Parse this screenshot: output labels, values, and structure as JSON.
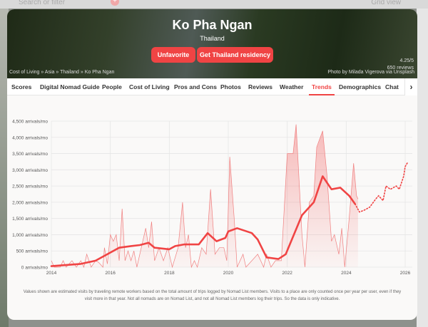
{
  "topbar": {
    "search_placeholder": "Search or filter",
    "grid_view": "Grid view"
  },
  "hero": {
    "title": "Ko Pha Ngan",
    "country": "Thailand",
    "unfavorite": "Unfavorite",
    "residency": "Get Thailand residency",
    "breadcrumb": "Cost of Living » Asia » Thailand » Ko Pha Ngan",
    "rating": "4.25/5",
    "reviews": "650 reviews",
    "credit": "Photo by Milada Vigerova via Unsplash"
  },
  "tabs": [
    "Scores",
    "Digital Nomad Guide",
    "People",
    "Cost of Living",
    "Pros and Cons",
    "Photos",
    "Reviews",
    "Weather",
    "Trends",
    "Demographics",
    "Chat"
  ],
  "active_tab": "Trends",
  "note": "Values shown are estimated visits by traveling remote workers based on the total amount of trips logged by Nomad List members. Visits to a place are only counted once per year per user, even if they visit more in that year. Not all nomads are on Nomad List, and not all Nomad List members log their trips. So the data is only indicative.",
  "chart_data": {
    "type": "line",
    "ylim": [
      0,
      4500
    ],
    "xlim": [
      2014,
      2026
    ],
    "y_ticks": [
      "0 arrivals/mo",
      "500 arrivals/mo",
      "1,000 arrivals/mo",
      "1,500 arrivals/mo",
      "2,000 arrivals/mo",
      "2,500 arrivals/mo",
      "3,000 arrivals/mo",
      "3,500 arrivals/mo",
      "4,000 arrivals/mo",
      "4,500 arrivals/mo"
    ],
    "x_ticks": [
      "2014",
      "2016",
      "2018",
      "2020",
      "2022",
      "2024",
      "2026"
    ],
    "grid": true,
    "color": "#f04444",
    "monthly": [
      [
        2014,
        200
      ],
      [
        2014.1,
        0
      ],
      [
        2014.3,
        0
      ],
      [
        2014.4,
        200
      ],
      [
        2014.5,
        0
      ],
      [
        2014.7,
        200
      ],
      [
        2014.85,
        0
      ],
      [
        2015,
        200
      ],
      [
        2015.1,
        0
      ],
      [
        2015.2,
        400
      ],
      [
        2015.35,
        0
      ],
      [
        2015.5,
        200
      ],
      [
        2015.6,
        150
      ],
      [
        2015.75,
        0
      ],
      [
        2015.8,
        600
      ],
      [
        2015.9,
        100
      ],
      [
        2016,
        1000
      ],
      [
        2016.1,
        800
      ],
      [
        2016.2,
        1000
      ],
      [
        2016.3,
        200
      ],
      [
        2016.4,
        1800
      ],
      [
        2016.5,
        200
      ],
      [
        2016.6,
        500
      ],
      [
        2016.7,
        200
      ],
      [
        2016.8,
        500
      ],
      [
        2016.9,
        0
      ],
      [
        2017.1,
        800
      ],
      [
        2017.2,
        1200
      ],
      [
        2017.3,
        600
      ],
      [
        2017.4,
        1400
      ],
      [
        2017.5,
        200
      ],
      [
        2017.65,
        600
      ],
      [
        2017.8,
        200
      ],
      [
        2017.95,
        600
      ],
      [
        2018.1,
        0
      ],
      [
        2018.3,
        600
      ],
      [
        2018.45,
        2000
      ],
      [
        2018.55,
        600
      ],
      [
        2018.65,
        1000
      ],
      [
        2018.75,
        0
      ],
      [
        2018.85,
        200
      ],
      [
        2018.95,
        0
      ],
      [
        2019.1,
        600
      ],
      [
        2019.25,
        400
      ],
      [
        2019.4,
        2400
      ],
      [
        2019.55,
        400
      ],
      [
        2019.7,
        600
      ],
      [
        2019.85,
        600
      ],
      [
        2019.95,
        200
      ],
      [
        2020.05,
        3400
      ],
      [
        2020.2,
        1500
      ],
      [
        2020.3,
        0
      ],
      [
        2020.5,
        400
      ],
      [
        2020.6,
        0
      ],
      [
        2020.8,
        200
      ],
      [
        2021,
        400
      ],
      [
        2021.2,
        0
      ],
      [
        2021.3,
        400
      ],
      [
        2021.45,
        0
      ],
      [
        2021.6,
        200
      ],
      [
        2021.8,
        200
      ],
      [
        2022,
        3500
      ],
      [
        2022.2,
        3500
      ],
      [
        2022.3,
        4400
      ],
      [
        2022.5,
        1000
      ],
      [
        2022.6,
        0
      ],
      [
        2022.75,
        2000
      ],
      [
        2022.9,
        2200
      ],
      [
        2023,
        3700
      ],
      [
        2023.2,
        4200
      ],
      [
        2023.35,
        2800
      ],
      [
        2023.5,
        800
      ],
      [
        2023.6,
        1000
      ],
      [
        2023.75,
        400
      ],
      [
        2023.85,
        1200
      ],
      [
        2023.95,
        0
      ],
      [
        2024.1,
        1500
      ],
      [
        2024.25,
        3200
      ],
      [
        2024.35,
        2200
      ],
      [
        2024.4,
        2100
      ]
    ],
    "trend": [
      [
        2014,
        30
      ],
      [
        2015,
        100
      ],
      [
        2015.5,
        200
      ],
      [
        2016,
        450
      ],
      [
        2016.3,
        600
      ],
      [
        2016.7,
        650
      ],
      [
        2017,
        680
      ],
      [
        2017.3,
        750
      ],
      [
        2017.5,
        600
      ],
      [
        2018,
        550
      ],
      [
        2018.2,
        650
      ],
      [
        2018.5,
        700
      ],
      [
        2019,
        700
      ],
      [
        2019.3,
        1050
      ],
      [
        2019.6,
        800
      ],
      [
        2019.9,
        900
      ],
      [
        2020,
        1100
      ],
      [
        2020.3,
        1200
      ],
      [
        2020.8,
        1050
      ],
      [
        2021,
        850
      ],
      [
        2021.3,
        300
      ],
      [
        2021.7,
        250
      ],
      [
        2021.95,
        400
      ],
      [
        2022.5,
        1600
      ],
      [
        2022.9,
        2000
      ],
      [
        2023.2,
        2800
      ],
      [
        2023.5,
        2400
      ],
      [
        2023.8,
        2450
      ],
      [
        2024.1,
        2200
      ],
      [
        2024.3,
        1950
      ]
    ],
    "forecast": [
      [
        2024.3,
        1950
      ],
      [
        2024.45,
        1700
      ],
      [
        2024.6,
        1750
      ],
      [
        2024.8,
        1850
      ],
      [
        2025,
        2100
      ],
      [
        2025.1,
        2200
      ],
      [
        2025.25,
        2050
      ],
      [
        2025.35,
        2500
      ],
      [
        2025.5,
        2400
      ],
      [
        2025.7,
        2500
      ],
      [
        2025.8,
        2400
      ],
      [
        2025.95,
        2800
      ],
      [
        2026,
        3100
      ],
      [
        2026.1,
        3250
      ]
    ]
  }
}
